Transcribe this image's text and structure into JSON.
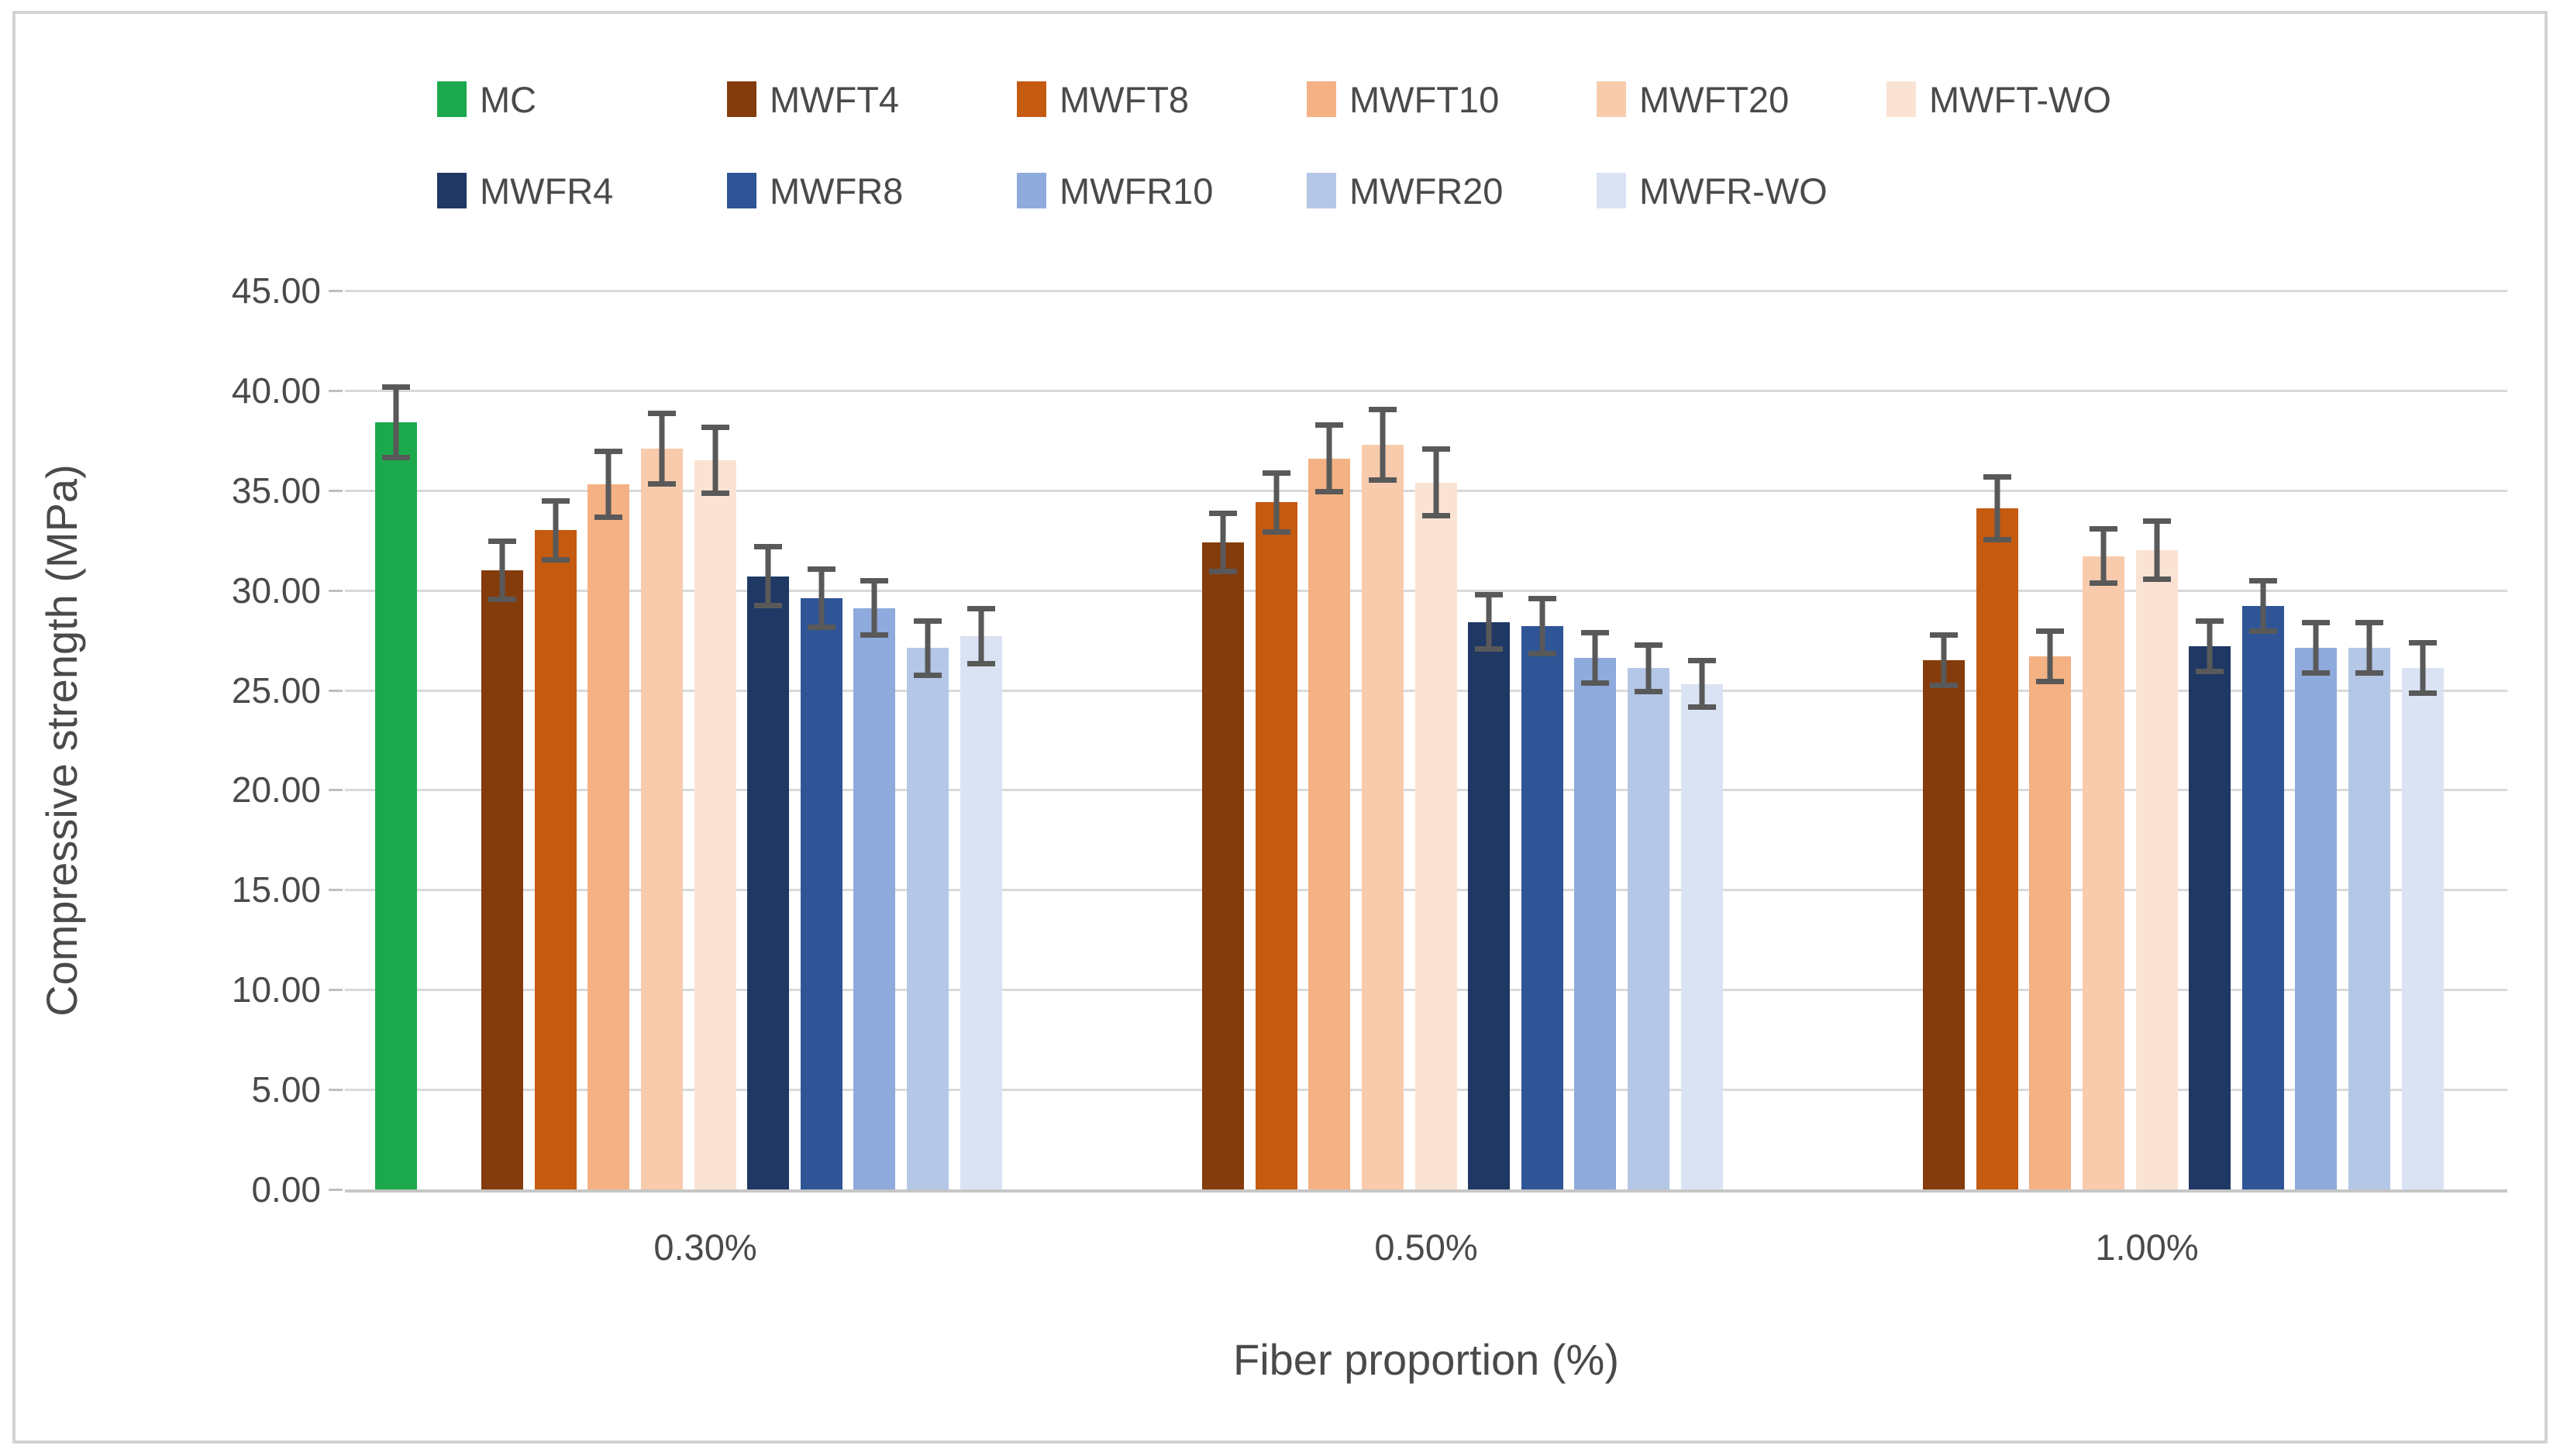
{
  "chart_data": {
    "type": "bar",
    "title": "",
    "categories": [
      "0.30%",
      "0.50%",
      "1.00%"
    ],
    "xlabel": "Fiber proportion (%)",
    "ylabel": "Compressive strength (MPa)",
    "ylim": [
      0,
      45
    ],
    "ytick_step": 5,
    "yticks": [
      "0.00",
      "5.00",
      "10.00",
      "15.00",
      "20.00",
      "25.00",
      "30.00",
      "35.00",
      "40.00",
      "45.00"
    ],
    "grid": true,
    "legend_position": "top",
    "error_bars": true,
    "error_bar_color": "#595959",
    "gridline_color": "#d9d9d9",
    "series": [
      {
        "name": "MC",
        "color": "#1CA94D",
        "values": [
          38.4,
          null,
          null
        ],
        "errors": [
          1.9,
          null,
          null
        ]
      },
      {
        "name": "MWFT4",
        "color": "#843C0C",
        "values": [
          31.0,
          32.4,
          26.5
        ],
        "errors": [
          1.6,
          1.6,
          1.4
        ]
      },
      {
        "name": "MWFT8",
        "color": "#C55A11",
        "values": [
          33.0,
          34.4,
          34.1
        ],
        "errors": [
          1.6,
          1.6,
          1.7
        ]
      },
      {
        "name": "MWFT10",
        "color": "#F4B183",
        "values": [
          35.3,
          36.6,
          26.7
        ],
        "errors": [
          1.8,
          1.8,
          1.4
        ]
      },
      {
        "name": "MWFT20",
        "color": "#F8CBAD",
        "values": [
          37.1,
          37.3,
          31.7
        ],
        "errors": [
          1.9,
          1.9,
          1.5
        ]
      },
      {
        "name": "MWFT-WO",
        "color": "#FAE3D3",
        "values": [
          36.5,
          35.4,
          32.0
        ],
        "errors": [
          1.8,
          1.8,
          1.6
        ]
      },
      {
        "name": "MWFR4",
        "color": "#1F3864",
        "values": [
          30.7,
          28.4,
          27.2
        ],
        "errors": [
          1.6,
          1.5,
          1.4
        ]
      },
      {
        "name": "MWFR8",
        "color": "#2F5597",
        "values": [
          29.6,
          28.2,
          29.2
        ],
        "errors": [
          1.6,
          1.5,
          1.4
        ]
      },
      {
        "name": "MWFR10",
        "color": "#8FAADC",
        "values": [
          29.1,
          26.6,
          27.1
        ],
        "errors": [
          1.5,
          1.4,
          1.4
        ]
      },
      {
        "name": "MWFR20",
        "color": "#B4C7E7",
        "values": [
          27.1,
          26.1,
          27.1
        ],
        "errors": [
          1.5,
          1.3,
          1.4
        ]
      },
      {
        "name": "MWFR-WO",
        "color": "#DAE3F3",
        "values": [
          27.7,
          25.3,
          26.1
        ],
        "errors": [
          1.5,
          1.3,
          1.4
        ]
      }
    ]
  },
  "legend": {
    "rows": [
      [
        "MC",
        "MWFT4",
        "MWFT8",
        "MWFT10",
        "MWFT20",
        "MWFT-WO"
      ],
      [
        "MWFR4",
        "MWFR8",
        "MWFR10",
        "MWFR20",
        "MWFR-WO"
      ]
    ]
  }
}
